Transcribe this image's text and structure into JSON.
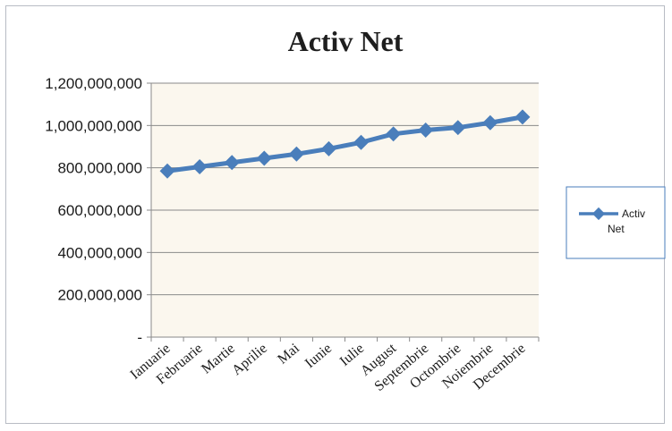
{
  "chart_data": {
    "type": "line",
    "title": "Activ Net",
    "xlabel": "",
    "ylabel": "",
    "categories": [
      "Ianuarie",
      "Februarie",
      "Martie",
      "Aprilie",
      "Mai",
      "Iunie",
      "Iulie",
      "August",
      "Septembrie",
      "Octombrie",
      "Noiembrie",
      "Decembrie"
    ],
    "series": [
      {
        "name": "Activ Net",
        "values": [
          785000000,
          805000000,
          825000000,
          845000000,
          865000000,
          890000000,
          920000000,
          960000000,
          978000000,
          990000000,
          1013000000,
          1040000000
        ]
      }
    ],
    "ylim": [
      0,
      1200000000
    ],
    "yticks": [
      {
        "value": 0,
        "label": "-"
      },
      {
        "value": 200000000,
        "label": "200,000,000"
      },
      {
        "value": 400000000,
        "label": "400,000,000"
      },
      {
        "value": 600000000,
        "label": "600,000,000"
      },
      {
        "value": 800000000,
        "label": "800,000,000"
      },
      {
        "value": 1000000000,
        "label": "1,000,000,000"
      },
      {
        "value": 1200000000,
        "label": "1,200,000,000"
      }
    ],
    "grid": true,
    "legend": "right",
    "colors": {
      "series": "#4a7ebb",
      "plot_bg": "#fbf7ee",
      "grid": "#8a8a8a"
    }
  }
}
